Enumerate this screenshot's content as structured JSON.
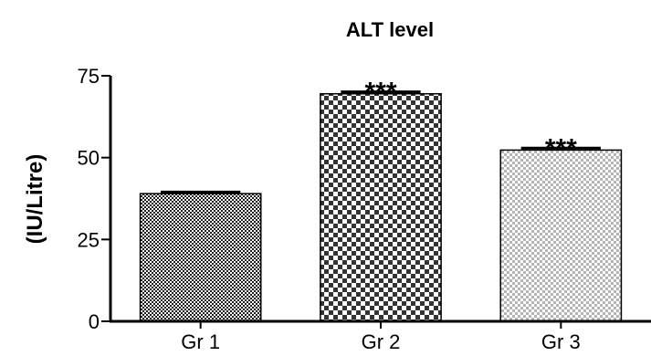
{
  "chart_data": {
    "type": "bar",
    "title": "ALT level",
    "xlabel": "",
    "ylabel": "(IU/Litre)",
    "categories": [
      "Gr 1",
      "Gr 2",
      "Gr 3"
    ],
    "values": [
      39,
      69.5,
      52.3
    ],
    "errors": [
      0.5,
      0.6,
      0.6
    ],
    "annotations": [
      "",
      "***",
      "***"
    ],
    "ylim": [
      0,
      75
    ],
    "yticks": [
      0,
      25,
      50,
      75
    ],
    "ytick_labels": [
      "0",
      "25",
      "50",
      "75"
    ],
    "grid": false,
    "legend": "none",
    "bar_patterns": [
      "fine-checker",
      "coarse-checker",
      "light-checker"
    ],
    "colors": {
      "axis": "#000000",
      "dark": "#1a1a1a",
      "light": "#b5b5b5",
      "bar_outline": "#000000"
    }
  }
}
